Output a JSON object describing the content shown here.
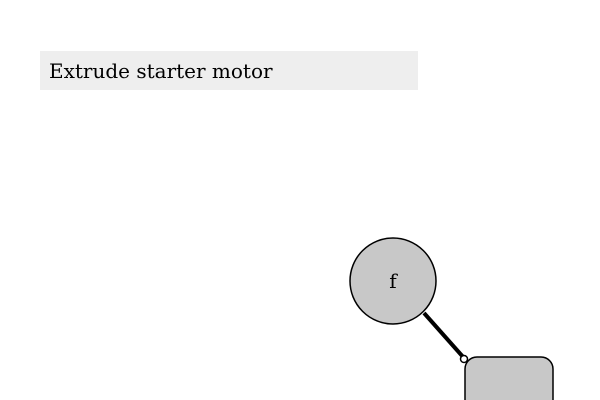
{
  "task": {
    "instruction": "Extrude starter motor"
  },
  "diagram": {
    "circle_node": {
      "label": "f"
    },
    "rect_node": {
      "label": ""
    },
    "colors": {
      "node_fill": "#c8c8c8",
      "node_stroke": "#000000",
      "connector": "#000000",
      "banner_background": "#eeeeee"
    }
  }
}
